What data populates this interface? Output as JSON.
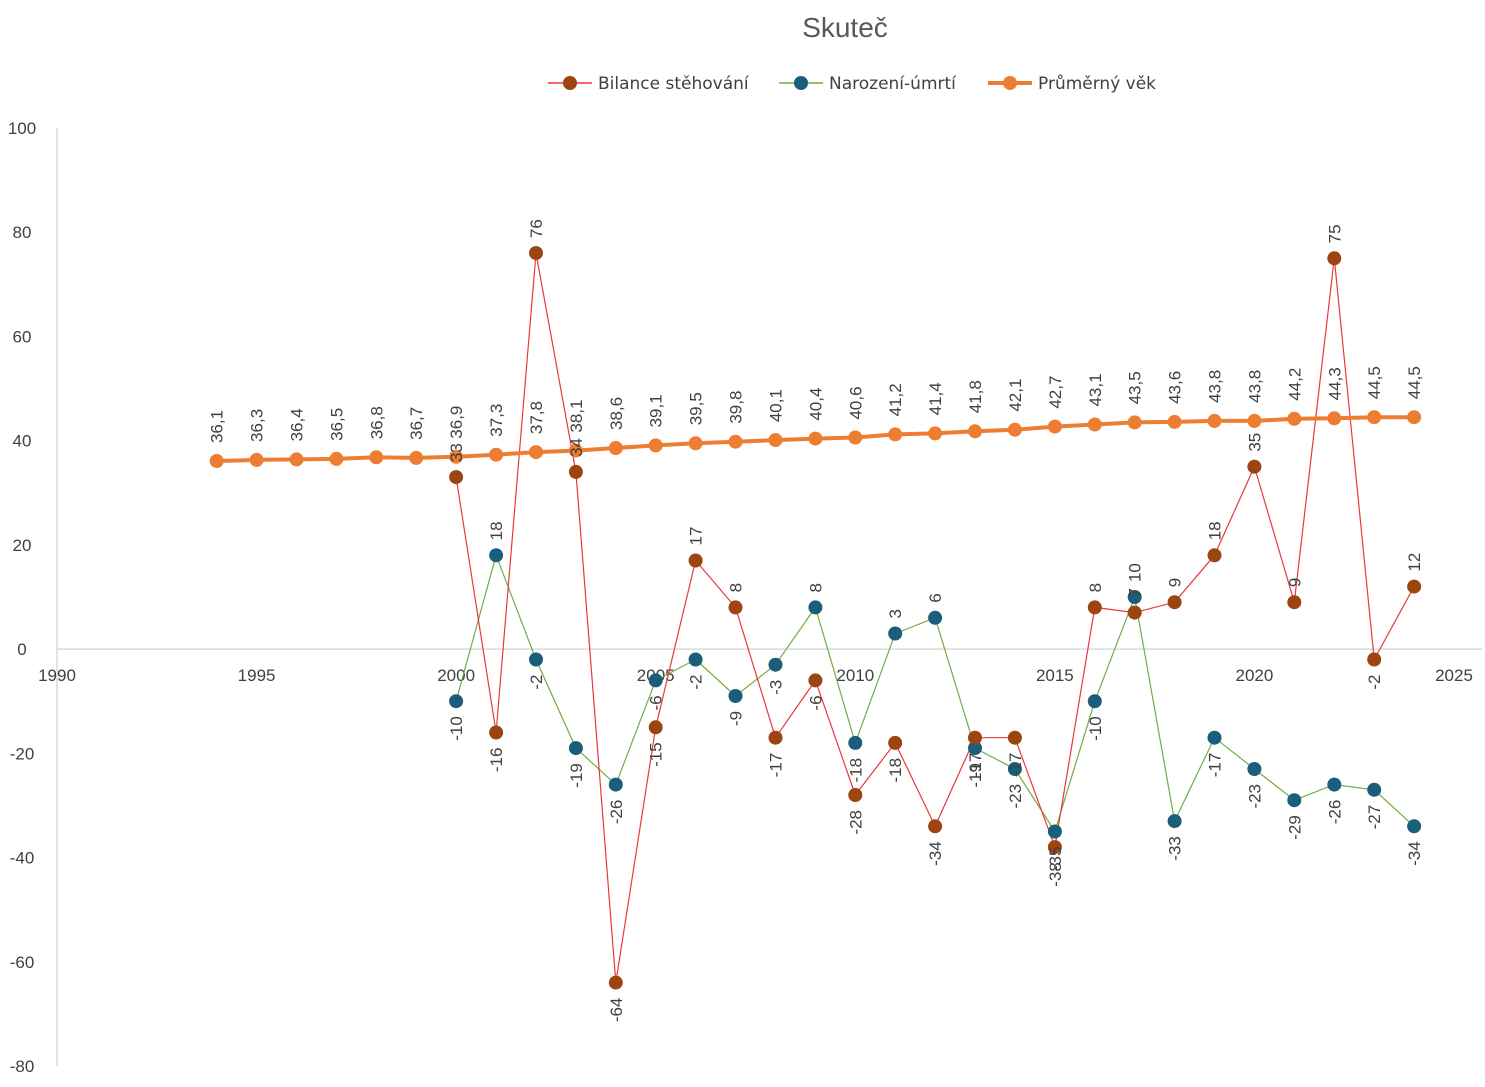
{
  "chart_data": {
    "type": "scatter",
    "title": "Skuteč",
    "xlim": [
      1990,
      2025
    ],
    "ylim": [
      -80,
      100
    ],
    "x_ticks": [
      1990,
      1995,
      2000,
      2005,
      2010,
      2015,
      2020,
      2025
    ],
    "y_ticks": [
      100,
      80,
      60,
      40,
      20,
      0,
      -20,
      -40,
      -60,
      -80
    ],
    "legend_position": "top",
    "grid": false,
    "series": [
      {
        "name": "Bilance stěhování",
        "color": "#9c4510",
        "line_color": "#e8383d",
        "x": [
          2000,
          2001,
          2002,
          2003,
          2004,
          2005,
          2006,
          2007,
          2008,
          2009,
          2010,
          2011,
          2012,
          2013,
          2014,
          2015,
          2016,
          2017,
          2018,
          2019,
          2020,
          2021,
          2022,
          2023,
          2024
        ],
        "y": [
          33,
          -16,
          76,
          34,
          -64,
          -15,
          17,
          8,
          -17,
          -6,
          -28,
          -18,
          -34,
          -17,
          -17,
          -38,
          8,
          7,
          9,
          18,
          35,
          9,
          75,
          -2,
          12
        ],
        "labels": [
          "33",
          "-16",
          "76",
          "34",
          "-64",
          "-15",
          "17",
          "8",
          "-17",
          "-6",
          "-28",
          "-18",
          "-34",
          "-17",
          "-17",
          "-38",
          "8",
          "7",
          "9",
          "18",
          "35",
          "9",
          "75",
          "-2",
          "12"
        ]
      },
      {
        "name": "Narození-úmrtí",
        "color": "#1b5e7b",
        "line_color": "#70ad47",
        "x": [
          2000,
          2001,
          2002,
          2003,
          2004,
          2005,
          2006,
          2007,
          2008,
          2009,
          2010,
          2011,
          2012,
          2013,
          2014,
          2015,
          2016,
          2017,
          2018,
          2019,
          2020,
          2021,
          2022,
          2023,
          2024
        ],
        "y": [
          -10,
          18,
          -2,
          -19,
          -26,
          -6,
          -2,
          -9,
          -3,
          8,
          -18,
          3,
          6,
          -19,
          -23,
          -35,
          -10,
          10,
          -33,
          -17,
          -23,
          -29,
          -26,
          -27,
          -34
        ],
        "labels": [
          "-10",
          "18",
          "-2",
          "-19",
          "-26",
          "-6",
          "-2",
          "-9",
          "-3",
          "8",
          "-18",
          "3",
          "6",
          "-19",
          "-23",
          "-35",
          "-10",
          "10",
          "-33",
          "-17",
          "-23",
          "-29",
          "-26",
          "-27",
          "-34"
        ]
      },
      {
        "name": "Průměrný věk",
        "color": "#ed7d31",
        "line_color": "#ed7d31",
        "x": [
          1994,
          1995,
          1996,
          1997,
          1998,
          1999,
          2000,
          2001,
          2002,
          2003,
          2004,
          2005,
          2006,
          2007,
          2008,
          2009,
          2010,
          2011,
          2012,
          2013,
          2014,
          2015,
          2016,
          2017,
          2018,
          2019,
          2020,
          2021,
          2022,
          2023,
          2024
        ],
        "y": [
          36.1,
          36.3,
          36.4,
          36.5,
          36.8,
          36.7,
          36.9,
          37.3,
          37.8,
          38.1,
          38.6,
          39.1,
          39.5,
          39.8,
          40.1,
          40.4,
          40.6,
          41.2,
          41.4,
          41.8,
          42.1,
          42.7,
          43.1,
          43.5,
          43.6,
          43.8,
          43.8,
          44.2,
          44.3,
          44.5,
          44.5
        ],
        "labels": [
          "36,1",
          "36,3",
          "36,4",
          "36,5",
          "36,8",
          "36,7",
          "36,9",
          "37,3",
          "37,8",
          "38,1",
          "38,6",
          "39,1",
          "39,5",
          "39,8",
          "40,1",
          "40,4",
          "40,6",
          "41,2",
          "41,4",
          "41,8",
          "42,1",
          "42,7",
          "43,1",
          "43,5",
          "43,6",
          "43,8",
          "43,8",
          "44,2",
          "44,3",
          "44,5",
          "44,5"
        ]
      }
    ]
  }
}
